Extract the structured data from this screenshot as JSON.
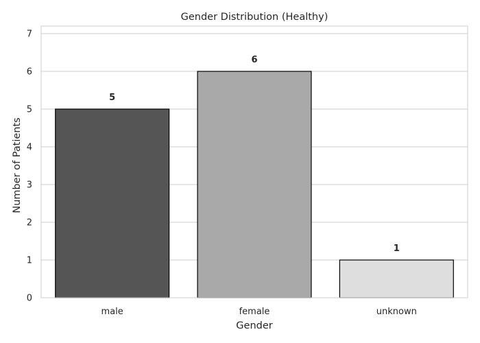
{
  "chart_data": {
    "type": "bar",
    "title": "Gender Distribution (Healthy)",
    "xlabel": "Gender",
    "ylabel": "Number of Patients",
    "categories": [
      "male",
      "female",
      "unknown"
    ],
    "values": [
      5,
      6,
      1
    ],
    "data_labels": [
      "5",
      "6",
      "1"
    ],
    "bar_colors": [
      "#555555",
      "#a9a9a9",
      "#dedede"
    ],
    "bar_edge_color": "#000000",
    "ylim": [
      0,
      7.2
    ],
    "yticks": [
      0,
      1,
      2,
      3,
      4,
      5,
      6,
      7
    ],
    "ytick_labels": [
      "0",
      "1",
      "2",
      "3",
      "4",
      "5",
      "6",
      "7"
    ],
    "grid": "horizontal",
    "grid_color": "#cccccc",
    "legend": "none"
  }
}
